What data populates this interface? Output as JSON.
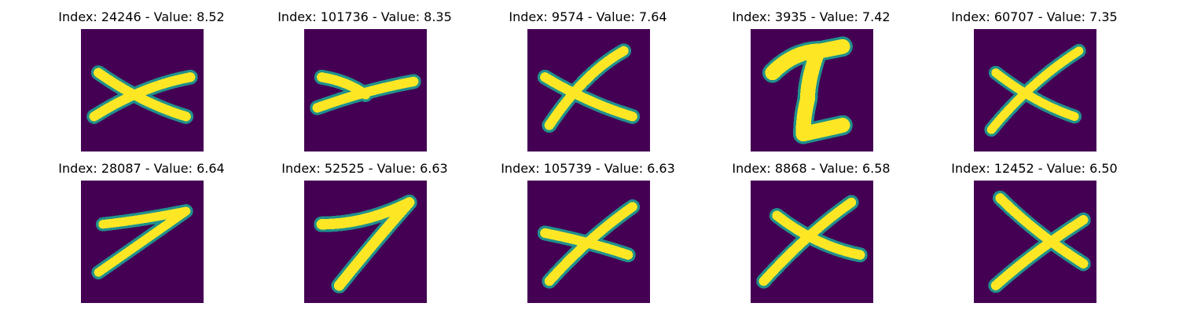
{
  "colors": {
    "background": "#440154",
    "edge": "#21918c",
    "foreground": "#fde725"
  },
  "panels": [
    {
      "index": "24246",
      "value": "8.52",
      "title": "Index: 24246 - Value: 8.52",
      "glyph": "x-wide-icon"
    },
    {
      "index": "101736",
      "value": "8.35",
      "title": "Index: 101736 - Value: 8.35",
      "glyph": "arrow-x-icon"
    },
    {
      "index": "9574",
      "value": "7.64",
      "title": "Index: 9574 - Value: 7.64",
      "glyph": "x-cross-icon"
    },
    {
      "index": "3935",
      "value": "7.42",
      "title": "Index: 3935 - Value: 7.42",
      "glyph": "z-one-icon"
    },
    {
      "index": "60707",
      "value": "7.35",
      "title": "Index: 60707 - Value: 7.35",
      "glyph": "x-cross-icon"
    },
    {
      "index": "28087",
      "value": "6.64",
      "title": "Index: 28087 - Value: 6.64",
      "glyph": "seven-icon"
    },
    {
      "index": "52525",
      "value": "6.63",
      "title": "Index: 52525 - Value: 6.63",
      "glyph": "seven-icon"
    },
    {
      "index": "105739",
      "value": "6.63",
      "title": "Index: 105739 - Value: 6.63",
      "glyph": "x-cross-icon"
    },
    {
      "index": "8868",
      "value": "6.58",
      "title": "Index: 8868 - Value: 6.58",
      "glyph": "x-cross-icon"
    },
    {
      "index": "12452",
      "value": "6.50",
      "title": "Index: 12452 - Value: 6.50",
      "glyph": "x-cross-icon"
    }
  ]
}
